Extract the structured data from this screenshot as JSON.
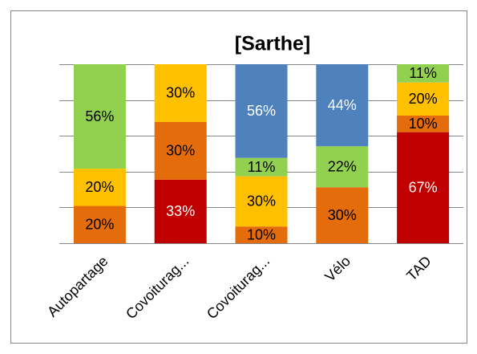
{
  "chart_data": {
    "type": "bar",
    "stack": "percent",
    "title": "[Sarthe]",
    "categories": [
      "Autopartage",
      "Covoiturag...",
      "Covoiturag...",
      "Vélo",
      "TAD"
    ],
    "series": [
      {
        "color": "#c00000",
        "values": [
          null,
          33,
          null,
          null,
          67
        ],
        "value_labels": [
          null,
          "33%",
          null,
          null,
          "67%"
        ]
      },
      {
        "color": "#e46c0a",
        "values": [
          20,
          30,
          10,
          30,
          10
        ],
        "value_labels": [
          "20%",
          "30%",
          "10%",
          "30%",
          "10%"
        ]
      },
      {
        "color": "#ffc000",
        "values": [
          20,
          30,
          30,
          null,
          20
        ],
        "value_labels": [
          "20%",
          "30%",
          "30%",
          null,
          "20%"
        ]
      },
      {
        "color": "#92d050",
        "values": [
          56,
          null,
          11,
          22,
          11
        ],
        "value_labels": [
          "56%",
          null,
          "11%",
          "22%",
          "11%"
        ]
      },
      {
        "color": "#4f81bd",
        "values": [
          null,
          null,
          56,
          44,
          null
        ],
        "value_labels": [
          null,
          null,
          "56%",
          "44%",
          null
        ]
      }
    ],
    "ylim": [
      0,
      100
    ],
    "yticks": [
      0,
      20,
      40,
      60,
      80,
      100
    ],
    "grid": true
  }
}
